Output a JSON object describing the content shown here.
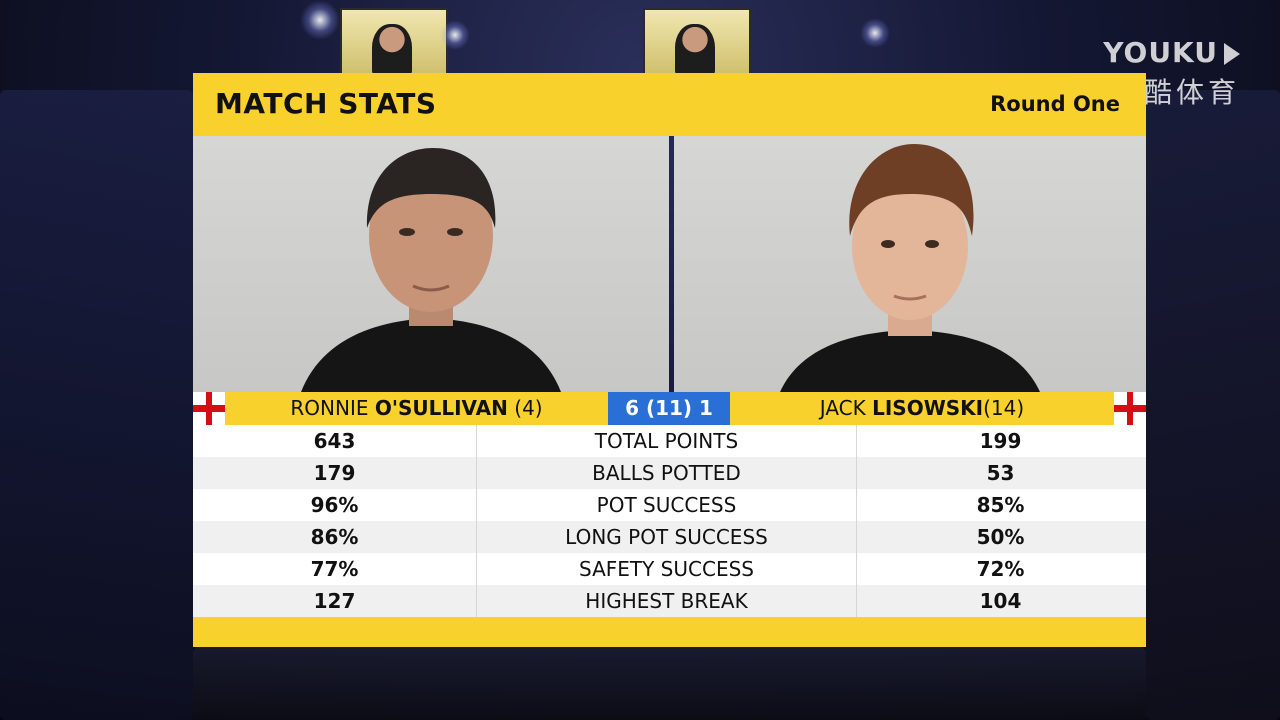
{
  "watermark": {
    "logo": "YOUKU",
    "sub": "优酷体育"
  },
  "header": {
    "title": "MATCH STATS",
    "round": "Round One"
  },
  "players": {
    "left": {
      "first": "RONNIE",
      "last": "O'SULLIVAN",
      "seed": "(4)"
    },
    "right": {
      "first": "JACK",
      "last": "LISOWSKI",
      "seed": "(14)"
    }
  },
  "score": "6 (11) 1",
  "stats": [
    {
      "label": "TOTAL POINTS",
      "left": "643",
      "right": "199"
    },
    {
      "label": "BALLS POTTED",
      "left": "179",
      "right": "53"
    },
    {
      "label": "POT SUCCESS",
      "left": "96%",
      "right": "85%"
    },
    {
      "label": "LONG POT SUCCESS",
      "left": "86%",
      "right": "50%"
    },
    {
      "label": "SAFETY SUCCESS",
      "left": "77%",
      "right": "72%"
    },
    {
      "label": "HIGHEST BREAK",
      "left": "127",
      "right": "104"
    }
  ],
  "colors": {
    "accent": "#f8d12c",
    "score_bg": "#2a6fd6",
    "flag_red": "#d40e14"
  }
}
